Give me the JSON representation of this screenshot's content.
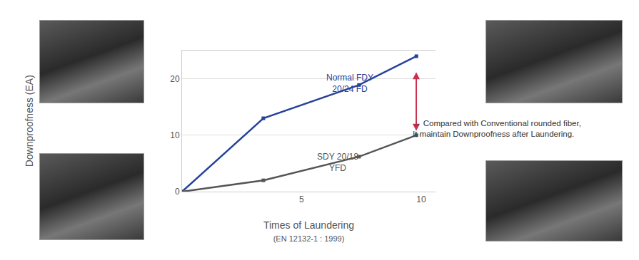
{
  "chart_data": {
    "type": "line",
    "xlabel": "Times of Laundering\n(EN 12132-1 : 1999)",
    "ylabel": "Downproofness (EA)",
    "x": [
      0,
      3.4,
      7.4,
      9.8
    ],
    "series": [
      {
        "name": "Normal FDY\n20/24 FD",
        "color": "#26429a",
        "values": [
          0,
          13,
          18.9,
          24
        ],
        "marker": "square"
      },
      {
        "name": "SDY 20/18\nYFD",
        "color": "#555555",
        "values": [
          0,
          2,
          6.2,
          10
        ],
        "marker": "square"
      }
    ],
    "xlim": [
      0,
      10.6
    ],
    "xticks": [
      5,
      10
    ],
    "ylim": [
      0,
      25
    ],
    "yticks": [
      0,
      10,
      20
    ],
    "grid": true,
    "annotations": [
      "→ Compared with Conventional rounded fiber,\nIt maintain Downproofness after Laundering."
    ]
  }
}
